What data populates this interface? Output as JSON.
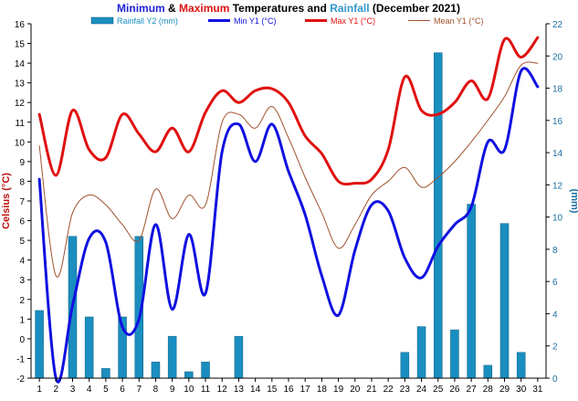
{
  "chart_data": {
    "type": "line",
    "title_parts": [
      {
        "text": "Minimum",
        "color": "#1f1fd6"
      },
      {
        "text": " & ",
        "color": "#000000"
      },
      {
        "text": "Maximum",
        "color": "#e01010"
      },
      {
        "text": " Temperatures and ",
        "color": "#000000"
      },
      {
        "text": "Rainfall",
        "color": "#3399cc"
      },
      {
        "text": " (December 2021)",
        "color": "#000000"
      }
    ],
    "ylabel_left": "Celsius (°C)",
    "ylabel_right": "(mm)",
    "ylim_left": [
      -2,
      16
    ],
    "yticks_left": [
      -2,
      -1,
      0,
      1,
      2,
      3,
      4,
      5,
      6,
      7,
      8,
      9,
      10,
      11,
      12,
      13,
      14,
      15,
      16
    ],
    "ylim_right": [
      0,
      22
    ],
    "yticks_right": [
      0,
      2,
      4,
      6,
      8,
      10,
      12,
      14,
      16,
      18,
      20,
      22
    ],
    "x": [
      1,
      2,
      3,
      4,
      5,
      6,
      7,
      8,
      9,
      10,
      11,
      12,
      13,
      14,
      15,
      16,
      17,
      18,
      19,
      20,
      21,
      22,
      23,
      24,
      25,
      26,
      27,
      28,
      29,
      30,
      31
    ],
    "grid": false,
    "legend_position": "top",
    "series": [
      {
        "name": "Rainfall Y2 (mm)",
        "kind": "bar",
        "axis": "right",
        "color": "#1a8ec0",
        "values": [
          4.2,
          0,
          8.8,
          3.8,
          0.6,
          3.8,
          8.8,
          1.0,
          2.6,
          0.4,
          1.0,
          0,
          2.6,
          0,
          0,
          0,
          0,
          0,
          0,
          0,
          0,
          0,
          1.6,
          3.2,
          20.2,
          3.0,
          10.8,
          0.8,
          9.6,
          1.6,
          0
        ]
      },
      {
        "name": "Min Y1 (°C)",
        "kind": "line",
        "axis": "left",
        "color": "#1010e0",
        "width": 3,
        "values": [
          8.1,
          -2.0,
          1.7,
          5.1,
          4.9,
          0.6,
          1.0,
          5.8,
          1.5,
          5.3,
          2.3,
          9.5,
          10.9,
          9.0,
          10.9,
          8.5,
          6.3,
          3.2,
          1.2,
          4.5,
          6.8,
          6.5,
          4.1,
          3.1,
          4.7,
          5.8,
          6.7,
          10.0,
          9.6,
          13.6,
          12.8
        ]
      },
      {
        "name": "Max Y1 (°C)",
        "kind": "line",
        "axis": "left",
        "color": "#e01010",
        "width": 3,
        "values": [
          11.4,
          8.3,
          11.6,
          9.6,
          9.2,
          11.4,
          10.4,
          9.5,
          10.7,
          9.5,
          11.5,
          12.6,
          12.0,
          12.6,
          12.7,
          12.0,
          10.3,
          9.4,
          8.0,
          7.9,
          8.1,
          9.6,
          13.3,
          11.6,
          11.4,
          12.0,
          13.1,
          12.2,
          15.2,
          14.3,
          15.3
        ]
      },
      {
        "name": "Mean Y1 (°C)",
        "kind": "line",
        "axis": "left",
        "color": "#a0522d",
        "width": 1,
        "values": [
          9.8,
          3.2,
          6.4,
          7.3,
          6.8,
          5.8,
          5.0,
          7.6,
          6.1,
          7.3,
          6.8,
          11.0,
          11.4,
          10.7,
          11.8,
          10.2,
          8.2,
          6.4,
          4.6,
          5.8,
          7.3,
          8.0,
          8.7,
          7.7,
          8.2,
          9.0,
          10.0,
          11.1,
          12.3,
          13.9,
          14.0
        ]
      }
    ]
  }
}
